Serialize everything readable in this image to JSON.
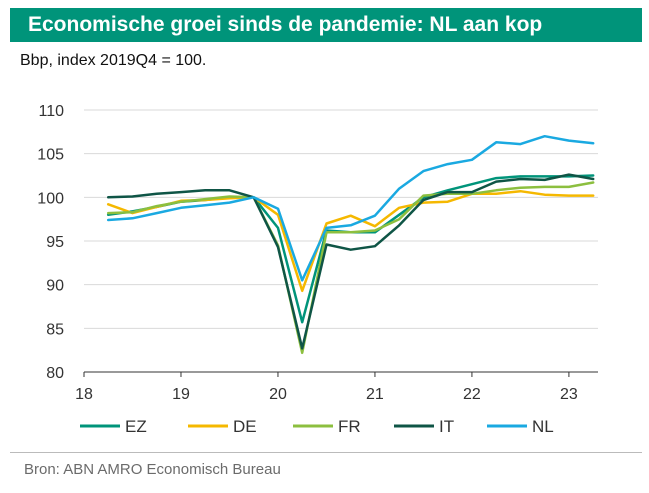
{
  "chart_data": {
    "type": "line",
    "title": "Economische groei sinds de pandemie: NL aan kop",
    "subtitle": "Bbp, index 2019Q4 = 100.",
    "xlabel": "",
    "ylabel": "",
    "ylim": [
      80,
      110
    ],
    "yticks": [
      80,
      85,
      90,
      95,
      100,
      105,
      110
    ],
    "xlim": [
      2018,
      2023.3
    ],
    "xticks": [
      {
        "value": 2018,
        "label": "18"
      },
      {
        "value": 2019,
        "label": "19"
      },
      {
        "value": 2020,
        "label": "20"
      },
      {
        "value": 2021,
        "label": "21"
      },
      {
        "value": 2022,
        "label": "22"
      },
      {
        "value": 2023,
        "label": "23"
      }
    ],
    "x": [
      2018.25,
      2018.5,
      2018.75,
      2019.0,
      2019.25,
      2019.5,
      2019.75,
      2020.0,
      2020.25,
      2020.5,
      2020.75,
      2021.0,
      2021.25,
      2021.5,
      2021.75,
      2022.0,
      2022.25,
      2022.5,
      2022.75,
      2023.0,
      2023.25
    ],
    "grid": "horizontal",
    "legend_position": "bottom",
    "series": [
      {
        "name": "EZ",
        "color": "#00947a",
        "values": [
          98.0,
          98.4,
          98.9,
          99.5,
          99.7,
          100.0,
          100.0,
          96.5,
          85.7,
          96.2,
          96.0,
          96.0,
          98.0,
          100.0,
          100.8,
          101.5,
          102.2,
          102.4,
          102.4,
          102.4,
          102.5
        ]
      },
      {
        "name": "DE",
        "color": "#f5b800",
        "values": [
          99.2,
          98.2,
          98.9,
          99.6,
          99.7,
          99.9,
          100.0,
          98.0,
          89.3,
          97.0,
          97.9,
          96.7,
          98.8,
          99.4,
          99.5,
          100.4,
          100.4,
          100.7,
          100.3,
          100.2,
          100.2
        ]
      },
      {
        "name": "FR",
        "color": "#8cbf3f",
        "values": [
          98.2,
          98.3,
          99.0,
          99.5,
          99.8,
          100.1,
          100.0,
          94.5,
          82.2,
          96.0,
          96.0,
          96.2,
          97.5,
          100.2,
          100.4,
          100.4,
          100.8,
          101.1,
          101.2,
          101.2,
          101.7
        ]
      },
      {
        "name": "IT",
        "color": "#0f5546",
        "values": [
          100.0,
          100.1,
          100.4,
          100.6,
          100.8,
          100.8,
          100.0,
          94.3,
          82.7,
          94.6,
          94.0,
          94.4,
          96.8,
          99.7,
          100.6,
          100.6,
          101.8,
          102.1,
          102.0,
          102.6,
          102.1
        ]
      },
      {
        "name": "NL",
        "color": "#1aa9e1",
        "values": [
          97.4,
          97.6,
          98.2,
          98.8,
          99.1,
          99.4,
          100.0,
          98.7,
          90.5,
          96.5,
          96.8,
          97.9,
          101.0,
          103.0,
          103.8,
          104.3,
          106.3,
          106.1,
          107.0,
          106.5,
          106.2
        ]
      }
    ],
    "source": "Bron: ABN AMRO Economisch Bureau"
  }
}
